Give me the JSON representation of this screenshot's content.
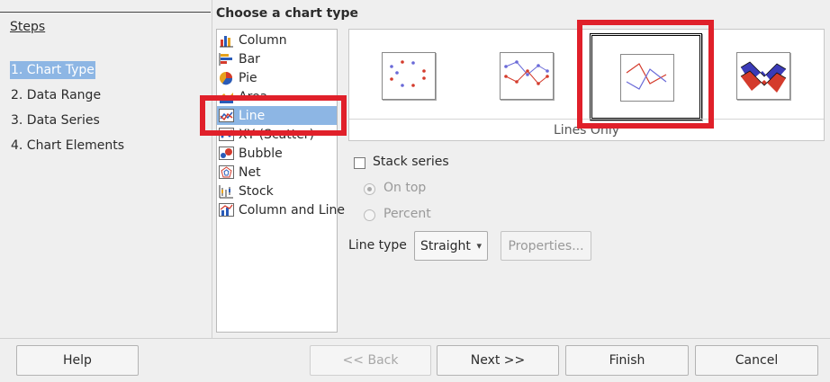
{
  "steps": {
    "title": "Steps",
    "items": [
      {
        "label": "1. Chart Type",
        "active": true
      },
      {
        "label": "2. Data Range",
        "active": false
      },
      {
        "label": "3. Data Series",
        "active": false
      },
      {
        "label": "4. Chart Elements",
        "active": false
      }
    ]
  },
  "main": {
    "title": "Choose a chart type",
    "chart_types": [
      {
        "label": "Column",
        "icon": "column-chart-icon"
      },
      {
        "label": "Bar",
        "icon": "bar-chart-icon"
      },
      {
        "label": "Pie",
        "icon": "pie-chart-icon"
      },
      {
        "label": "Area",
        "icon": "area-chart-icon"
      },
      {
        "label": "Line",
        "icon": "line-chart-icon",
        "selected": true
      },
      {
        "label": "XY (Scatter)",
        "icon": "scatter-chart-icon"
      },
      {
        "label": "Bubble",
        "icon": "bubble-chart-icon"
      },
      {
        "label": "Net",
        "icon": "net-chart-icon"
      },
      {
        "label": "Stock",
        "icon": "stock-chart-icon"
      },
      {
        "label": "Column and Line",
        "icon": "column-and-line-chart-icon"
      }
    ],
    "variants": [
      {
        "icon": "points-only-icon"
      },
      {
        "icon": "points-and-lines-icon"
      },
      {
        "icon": "lines-only-icon",
        "selected": true
      },
      {
        "icon": "3d-lines-icon"
      }
    ],
    "variant_label": "Lines Only",
    "stack_series": {
      "label": "Stack series",
      "checked": false
    },
    "on_top": {
      "label": "On top"
    },
    "percent": {
      "label": "Percent"
    },
    "line_type": {
      "label": "Line type",
      "value": "Straight"
    },
    "properties_label": "Properties..."
  },
  "buttons": {
    "help": "Help",
    "back": "<< Back",
    "next": "Next >>",
    "finish": "Finish",
    "cancel": "Cancel"
  },
  "colors": {
    "selection": "#8db6e4",
    "highlight": "#e0202a"
  }
}
